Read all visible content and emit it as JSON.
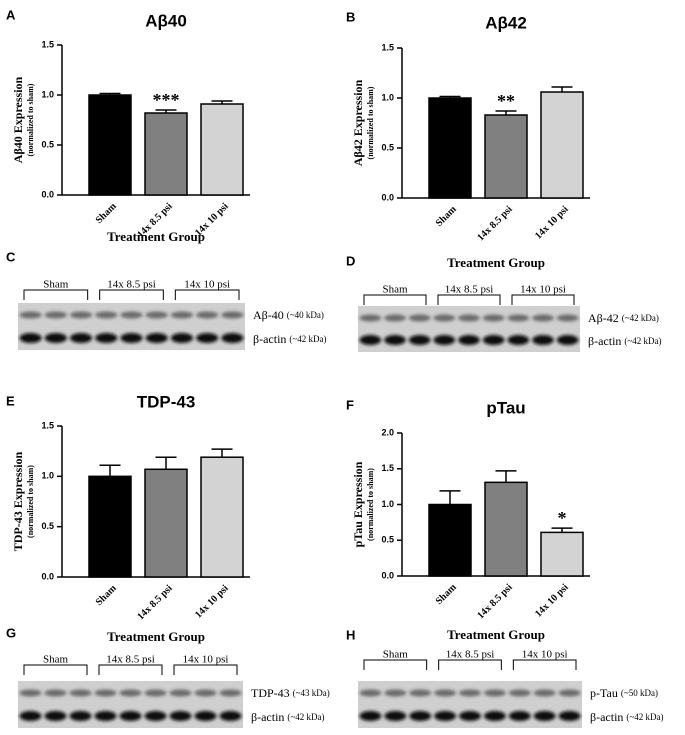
{
  "chart_data": [
    {
      "type": "bar",
      "panel": "A",
      "title": "Aβ40",
      "ylabel": "Aβ40 Expression",
      "ylabel_sub": "(normalized to sham)",
      "xlabel": "Treatment Group",
      "categories": [
        "Sham",
        "14x 8.5 psi",
        "14x 10 psi"
      ],
      "values": [
        1.0,
        0.82,
        0.91
      ],
      "errors": [
        0.015,
        0.03,
        0.03
      ],
      "annotations": [
        null,
        "***",
        null
      ],
      "colors": [
        "#000000",
        "#808080",
        "#d3d3d3"
      ],
      "ylim": [
        0,
        1.5
      ],
      "yticks": [
        {
          "value": 0,
          "label": "0.0"
        },
        {
          "value": 0.5,
          "label": "0.5"
        },
        {
          "value": 1,
          "label": "1.0"
        },
        {
          "value": 1.5,
          "label": "1.5"
        }
      ]
    },
    {
      "type": "bar",
      "panel": "B",
      "title": "Aβ42",
      "ylabel": "Aβ42 Expression",
      "ylabel_sub": "(normalized to sham)",
      "xlabel": "Treatment Group",
      "categories": [
        "Sham",
        "14x 8.5 psi",
        "14x 10 psi"
      ],
      "values": [
        1.0,
        0.83,
        1.06
      ],
      "errors": [
        0.015,
        0.04,
        0.05
      ],
      "annotations": [
        null,
        "**",
        null
      ],
      "colors": [
        "#000000",
        "#808080",
        "#d3d3d3"
      ],
      "ylim": [
        0,
        1.5
      ],
      "yticks": [
        {
          "value": 0,
          "label": "0.0"
        },
        {
          "value": 0.5,
          "label": "0.5"
        },
        {
          "value": 1,
          "label": "1.0"
        },
        {
          "value": 1.5,
          "label": "1.5"
        }
      ]
    },
    {
      "type": "bar",
      "panel": "E",
      "title": "TDP-43",
      "ylabel": "TDP-43 Expression",
      "ylabel_sub": "(normalized to sham)",
      "xlabel": "Treatment Group",
      "categories": [
        "Sham",
        "14x 8.5 psi",
        "14x 10 psi"
      ],
      "values": [
        1.0,
        1.07,
        1.19
      ],
      "errors": [
        0.11,
        0.12,
        0.08
      ],
      "annotations": [
        null,
        null,
        null
      ],
      "colors": [
        "#000000",
        "#808080",
        "#d3d3d3"
      ],
      "ylim": [
        0,
        1.5
      ],
      "yticks": [
        {
          "value": 0,
          "label": "0.0"
        },
        {
          "value": 0.5,
          "label": "0.5"
        },
        {
          "value": 1,
          "label": "1.0"
        },
        {
          "value": 1.5,
          "label": "1.5"
        }
      ]
    },
    {
      "type": "bar",
      "panel": "F",
      "title": "pTau",
      "ylabel": "pTau Expression",
      "ylabel_sub": "(normalized to sham)",
      "xlabel": "Treatment Group",
      "categories": [
        "Sham",
        "14x 8.5 psi",
        "14x 10 psi"
      ],
      "values": [
        1.0,
        1.31,
        0.61
      ],
      "errors": [
        0.19,
        0.16,
        0.06
      ],
      "annotations": [
        null,
        null,
        "*"
      ],
      "colors": [
        "#000000",
        "#808080",
        "#d3d3d3"
      ],
      "ylim": [
        0,
        2
      ],
      "yticks": [
        {
          "value": 0,
          "label": "0.0"
        },
        {
          "value": 0.5,
          "label": "0.5"
        },
        {
          "value": 1,
          "label": "1.0"
        },
        {
          "value": 1.5,
          "label": "1.5"
        },
        {
          "value": 2,
          "label": "2.0"
        }
      ]
    }
  ],
  "blots": [
    {
      "panel": "C",
      "groups": [
        "Sham",
        "14x 8.5 psi",
        "14x 10 psi"
      ],
      "bands": [
        {
          "name": "Aβ-40",
          "size": "(~40 kDa)"
        },
        {
          "name": "β-actin",
          "size": "(~42 kDa)"
        }
      ]
    },
    {
      "panel": "D",
      "groups": [
        "Sham",
        "14x 8.5 psi",
        "14x 10 psi"
      ],
      "bands": [
        {
          "name": "Aβ-42",
          "size": "(~42 kDa)"
        },
        {
          "name": "β-actin",
          "size": "(~42 kDa)"
        }
      ]
    },
    {
      "panel": "G",
      "groups": [
        "Sham",
        "14x 8.5 psi",
        "14x 10 psi"
      ],
      "bands": [
        {
          "name": "TDP-43",
          "size": "(~43 kDa)"
        },
        {
          "name": "β-actin",
          "size": "(~42 kDa)"
        }
      ]
    },
    {
      "panel": "H",
      "groups": [
        "Sham",
        "14x 8.5 psi",
        "14x 10 psi"
      ],
      "bands": [
        {
          "name": "p-Tau",
          "size": "(~50 kDa)"
        },
        {
          "name": "β-actin",
          "size": "(~42 kDa)"
        }
      ]
    }
  ]
}
